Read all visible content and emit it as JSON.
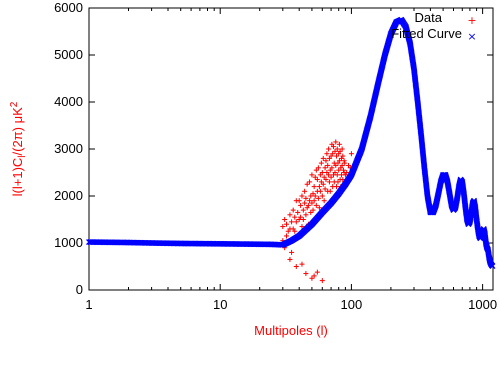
{
  "chart_data": {
    "type": "scatter",
    "xscale": "log",
    "xlim": [
      1,
      1200
    ],
    "ylim": [
      0,
      6000
    ],
    "xlabel": "Multipoles  (l)",
    "ylabel": "l(l+1)C",
    "ylabel_sub": "l",
    "ylabel_rest": "/(2π)  μK",
    "ylabel_sup": "2",
    "axis_title_color": "#ff0000",
    "x_ticks": [
      {
        "value": 1,
        "label": "1"
      },
      {
        "value": 10,
        "label": "10"
      },
      {
        "value": 100,
        "label": "100"
      },
      {
        "value": 1000,
        "label": "1000"
      }
    ],
    "y_ticks": [
      {
        "value": 0,
        "label": "0"
      },
      {
        "value": 1000,
        "label": "1000"
      },
      {
        "value": 2000,
        "label": "2000"
      },
      {
        "value": 3000,
        "label": "3000"
      },
      {
        "value": 4000,
        "label": "4000"
      },
      {
        "value": 5000,
        "label": "5000"
      },
      {
        "value": 6000,
        "label": "6000"
      }
    ],
    "legend_position": "top-right",
    "series": [
      {
        "name": "Data",
        "marker": "+",
        "color": "#ff0000",
        "x": [
          30,
          30,
          31,
          31,
          32,
          32,
          33,
          33,
          34,
          34,
          35,
          35,
          36,
          36,
          37,
          37,
          38,
          38,
          39,
          39,
          40,
          40,
          41,
          41,
          42,
          42,
          43,
          43,
          44,
          44,
          45,
          45,
          46,
          46,
          47,
          47,
          48,
          48,
          49,
          49,
          50,
          50,
          51,
          51,
          52,
          52,
          53,
          53,
          54,
          54,
          55,
          55,
          56,
          56,
          57,
          57,
          58,
          58,
          59,
          59,
          60,
          60,
          61,
          61,
          62,
          62,
          63,
          63,
          64,
          64,
          65,
          65,
          66,
          66,
          67,
          67,
          68,
          68,
          69,
          69,
          70,
          70,
          71,
          71,
          72,
          72,
          73,
          73,
          74,
          74,
          75,
          75,
          76,
          76,
          77,
          77,
          78,
          78,
          79,
          79,
          80,
          80,
          81,
          81,
          82,
          82,
          83,
          83,
          84,
          84,
          85,
          85,
          86,
          86,
          87,
          87,
          88,
          88,
          89,
          89,
          90,
          90,
          92,
          94,
          95,
          97,
          98,
          100,
          34,
          38,
          42,
          45,
          50,
          52,
          55,
          60
        ],
        "y": [
          1050,
          1350,
          900,
          1500,
          1150,
          1400,
          1250,
          1000,
          1600,
          1300,
          800,
          1450,
          1300,
          1700,
          1550,
          1250,
          1900,
          1450,
          1650,
          1100,
          1500,
          1900,
          1550,
          1800,
          1350,
          2000,
          1700,
          1500,
          1850,
          2100,
          1600,
          1950,
          1750,
          2250,
          1400,
          1800,
          1900,
          2300,
          1650,
          2000,
          1850,
          2450,
          2050,
          1700,
          2200,
          1900,
          2400,
          2000,
          1800,
          2550,
          2100,
          2350,
          1950,
          2600,
          2200,
          1750,
          2450,
          2100,
          2700,
          2300,
          2000,
          2500,
          2250,
          2800,
          2400,
          1900,
          2600,
          2150,
          2750,
          2350,
          2900,
          2500,
          2100,
          2650,
          2450,
          3000,
          2300,
          2800,
          2550,
          2100,
          2850,
          2400,
          3100,
          2600,
          2200,
          2900,
          2450,
          3050,
          2700,
          2300,
          2950,
          2500,
          3150,
          2650,
          2200,
          2850,
          2450,
          3000,
          2700,
          2300,
          2900,
          2550,
          3100,
          2750,
          2350,
          2950,
          2600,
          2200,
          2800,
          2450,
          3000,
          2650,
          2350,
          2850,
          2550,
          2150,
          2750,
          2500,
          2300,
          2700,
          2450,
          2200,
          2500,
          2350,
          2650,
          2400,
          2600,
          2900,
          650,
          500,
          550,
          350,
          250,
          300,
          380,
          200
        ]
      },
      {
        "name": "Fitted Curve",
        "marker": "x",
        "color": "#0000ff",
        "x": [
          1,
          2,
          3,
          5,
          8,
          12,
          18,
          25,
          30,
          35,
          40,
          50,
          60,
          70,
          80,
          90,
          100,
          120,
          140,
          160,
          180,
          200,
          220,
          240,
          260,
          280,
          300,
          320,
          340,
          360,
          380,
          400,
          420,
          440,
          460,
          480,
          500,
          520,
          540,
          560,
          580,
          600,
          620,
          640,
          660,
          680,
          700,
          720,
          740,
          760,
          780,
          800,
          820,
          840,
          860,
          880,
          900,
          920,
          940,
          960,
          980,
          1000,
          1020,
          1040,
          1060,
          1080,
          1100,
          1120,
          1140,
          1160,
          1180,
          1200
        ],
        "y": [
          1020,
          1010,
          1000,
          990,
          985,
          980,
          975,
          970,
          960,
          1050,
          1150,
          1400,
          1650,
          1850,
          2050,
          2250,
          2450,
          3000,
          3700,
          4400,
          5000,
          5450,
          5700,
          5750,
          5600,
          5250,
          4700,
          4000,
          3300,
          2600,
          2000,
          1650,
          1650,
          1800,
          2050,
          2300,
          2450,
          2450,
          2300,
          2050,
          1800,
          1700,
          1750,
          1950,
          2200,
          2350,
          2300,
          2050,
          1750,
          1500,
          1400,
          1450,
          1650,
          1850,
          1900,
          1750,
          1500,
          1300,
          1150,
          1100,
          1150,
          1250,
          1300,
          1200,
          1000,
          900,
          850,
          700,
          600,
          550,
          520,
          500
        ]
      }
    ]
  }
}
